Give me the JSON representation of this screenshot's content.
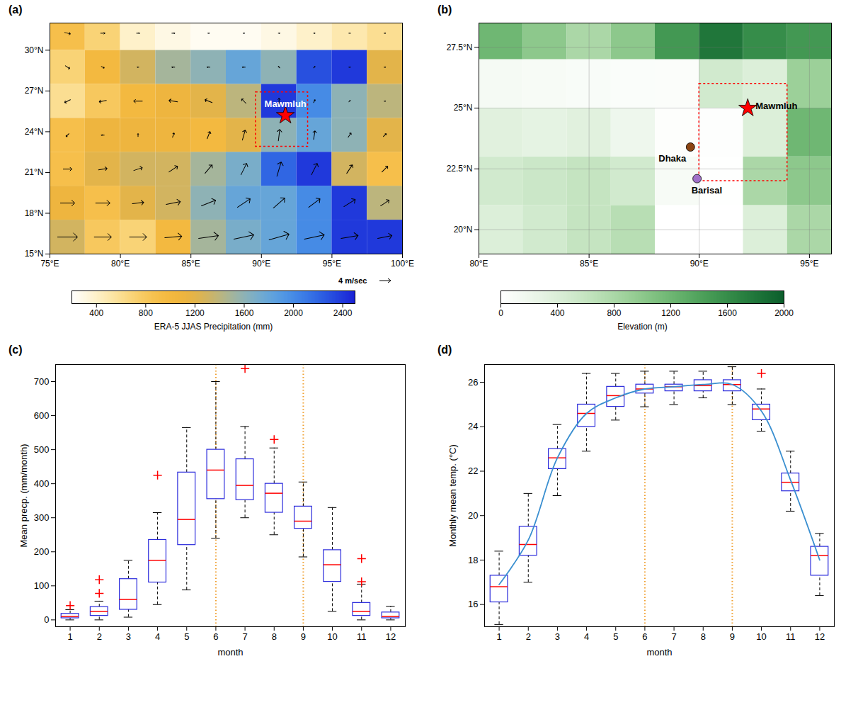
{
  "chart_data": [
    {
      "type": "map",
      "title": "(a)",
      "lon_edges": [
        75,
        77.5,
        80,
        82.5,
        85,
        87.5,
        90,
        92.5,
        95,
        97.5,
        100
      ],
      "lat_edges": [
        15,
        17.5,
        20,
        22.5,
        25,
        27.5,
        30,
        32.5
      ],
      "values": [
        [
          1300,
          800,
          700,
          1000,
          1500,
          1700,
          1800,
          2000,
          2400,
          2400
        ],
        [
          1100,
          900,
          1200,
          1300,
          1600,
          1800,
          1800,
          2000,
          2400,
          1400
        ],
        [
          900,
          1200,
          1300,
          1300,
          1500,
          1700,
          2200,
          2400,
          1300,
          900
        ],
        [
          900,
          1100,
          1100,
          1100,
          1000,
          1200,
          1600,
          1800,
          1600,
          1200
        ],
        [
          600,
          800,
          1000,
          1100,
          1200,
          1400,
          2400,
          2000,
          1600,
          1400
        ],
        [
          700,
          1000,
          1300,
          1500,
          1600,
          1800,
          1600,
          2300,
          2400,
          1200
        ],
        [
          900,
          700,
          400,
          300,
          250,
          250,
          300,
          400,
          500,
          600
        ]
      ],
      "wind": [
        [
          [
            7,
            0
          ],
          [
            6,
            0
          ],
          [
            6,
            0
          ],
          [
            6,
            0.5
          ],
          [
            7,
            1
          ],
          [
            7,
            1.5
          ],
          [
            7,
            2
          ],
          [
            7,
            1.5
          ],
          [
            6,
            1
          ],
          [
            5,
            1
          ]
        ],
        [
          [
            5,
            0
          ],
          [
            5,
            0
          ],
          [
            4,
            0.5
          ],
          [
            5,
            1
          ],
          [
            5,
            2
          ],
          [
            4.5,
            3
          ],
          [
            4,
            3.5
          ],
          [
            4,
            3
          ],
          [
            4,
            2.5
          ],
          [
            3,
            2
          ]
        ],
        [
          [
            3,
            0
          ],
          [
            3,
            0.5
          ],
          [
            3,
            1
          ],
          [
            3,
            2
          ],
          [
            2.5,
            3
          ],
          [
            2,
            4
          ],
          [
            1.5,
            5
          ],
          [
            2,
            4
          ],
          [
            2,
            3
          ],
          [
            2,
            2
          ]
        ],
        [
          [
            -1,
            -1
          ],
          [
            -1,
            0
          ],
          [
            0,
            1
          ],
          [
            0.5,
            1.5
          ],
          [
            1,
            2.5
          ],
          [
            1,
            3.5
          ],
          [
            0.5,
            4
          ],
          [
            0.5,
            3
          ],
          [
            1,
            1.5
          ],
          [
            1,
            1
          ]
        ],
        [
          [
            -2,
            -1
          ],
          [
            -2.5,
            -0.5
          ],
          [
            -3,
            0
          ],
          [
            -3,
            0.5
          ],
          [
            -2.5,
            1
          ],
          [
            -1.5,
            1.5
          ],
          [
            0,
            2
          ],
          [
            0.5,
            1
          ],
          [
            0.5,
            0.5
          ],
          [
            0.5,
            0
          ]
        ],
        [
          [
            1.5,
            -1
          ],
          [
            1,
            -0.5
          ],
          [
            -0.5,
            0
          ],
          [
            -1,
            0
          ],
          [
            -1,
            0
          ],
          [
            -1,
            0
          ],
          [
            -0.5,
            0.5
          ],
          [
            0.5,
            0.5
          ],
          [
            0.5,
            0
          ],
          [
            0.5,
            0
          ]
        ],
        [
          [
            2,
            -0.5
          ],
          [
            1.5,
            0
          ],
          [
            1,
            0
          ],
          [
            1,
            0
          ],
          [
            0.5,
            0
          ],
          [
            0.5,
            0
          ],
          [
            0.5,
            0
          ],
          [
            0.5,
            0
          ],
          [
            0.5,
            0
          ],
          [
            0.5,
            0
          ]
        ]
      ],
      "wind_key": {
        "value": 4,
        "label": "4 m/sec"
      },
      "colorbar": {
        "label": "ERA-5 JJAS Precipitation (mm)",
        "range": [
          200,
          2500
        ],
        "ticks": [
          400,
          800,
          1200,
          1600,
          2000,
          2400
        ],
        "colors": [
          "#ffffff",
          "#fde9a8",
          "#f6be45",
          "#f2b030",
          "#9fb9a8",
          "#5aa7e8",
          "#2f6fe6",
          "#1a22d6"
        ]
      },
      "xlim": [
        75,
        100
      ],
      "xticks": [
        {
          "value": 75,
          "label": "75°E"
        },
        {
          "value": 80,
          "label": "80°E"
        },
        {
          "value": 85,
          "label": "85°E"
        },
        {
          "value": 90,
          "label": "90°E"
        },
        {
          "value": 95,
          "label": "95°E"
        },
        {
          "value": 100,
          "label": "100°E"
        }
      ],
      "ylim": [
        15,
        32
      ],
      "yticks": [
        {
          "value": 15,
          "label": "15°N"
        },
        {
          "value": 18,
          "label": "18°N"
        },
        {
          "value": 21,
          "label": "21°N"
        },
        {
          "value": 24,
          "label": "24°N"
        },
        {
          "value": 27,
          "label": "27°N"
        },
        {
          "value": 30,
          "label": "30°N"
        }
      ],
      "box": {
        "lon": [
          89.6,
          93.3
        ],
        "lat": [
          22.9,
          26.9
        ],
        "color": "red"
      },
      "sites": [
        {
          "name": "Mawmluh",
          "lon": 91.7,
          "lat": 25.2,
          "color": "red",
          "marker": "star"
        }
      ]
    },
    {
      "type": "map",
      "title": "(b)",
      "grid": true,
      "lon_edges": [
        80,
        82,
        84,
        86,
        88,
        90,
        92,
        94,
        96
      ],
      "lat_edges": [
        19,
        21,
        23,
        25,
        27,
        28.5
      ],
      "values": [
        [
          400,
          500,
          600,
          700,
          0,
          0,
          400,
          800
        ],
        [
          500,
          550,
          600,
          500,
          100,
          10,
          800,
          1000
        ],
        [
          350,
          300,
          350,
          200,
          30,
          20,
          400,
          1200
        ],
        [
          120,
          100,
          80,
          60,
          50,
          500,
          400,
          900
        ],
        [
          1200,
          1000,
          800,
          1000,
          1500,
          1800,
          1600,
          1500
        ]
      ],
      "colorbar": {
        "label": "Elevation (m)",
        "range": [
          0,
          2000
        ],
        "ticks": [
          0,
          400,
          800,
          1200,
          1600,
          2000
        ],
        "colors": [
          "#ffffff",
          "#d6ecd2",
          "#8fcb8a",
          "#3e9a4f",
          "#0b5e2c"
        ]
      },
      "xlim": [
        80,
        96
      ],
      "xticks": [
        {
          "value": 80,
          "label": "80°E"
        },
        {
          "value": 85,
          "label": "85°E"
        },
        {
          "value": 90,
          "label": "90°E"
        },
        {
          "value": 95,
          "label": "95°E"
        }
      ],
      "ylim": [
        19,
        28.5
      ],
      "yticks": [
        {
          "value": 20,
          "label": "20°N"
        },
        {
          "value": 22.5,
          "label": "22.5°N"
        },
        {
          "value": 25,
          "label": "25°N"
        },
        {
          "value": 27.5,
          "label": "27.5°N"
        }
      ],
      "box": {
        "lon": [
          90,
          94
        ],
        "lat": [
          22,
          26
        ],
        "color": "red"
      },
      "sites": [
        {
          "name": "Mawmluh",
          "lon": 92.2,
          "lat": 25.0,
          "color": "red",
          "marker": "star"
        },
        {
          "name": "Dhaka",
          "lon": 89.6,
          "lat": 23.4,
          "color": "#8b4513",
          "marker": "circle"
        },
        {
          "name": "Barisal",
          "lon": 89.9,
          "lat": 22.1,
          "color": "#a070c8",
          "marker": "circle"
        }
      ]
    },
    {
      "type": "box",
      "title": "(c)",
      "xlabel": "month",
      "ylabel": "Mean precp. (mm/month)",
      "color": "#2b2bdc",
      "x": [
        1,
        2,
        3,
        4,
        5,
        6,
        7,
        8,
        9,
        10,
        11,
        12
      ],
      "whisker_low": [
        0,
        0,
        8,
        45,
        88,
        240,
        300,
        250,
        185,
        25,
        0,
        0
      ],
      "q1": [
        5,
        12,
        30,
        110,
        220,
        355,
        352,
        315,
        268,
        112,
        12,
        5
      ],
      "median": [
        10,
        25,
        60,
        175,
        295,
        440,
        395,
        372,
        290,
        162,
        25,
        10
      ],
      "q3": [
        18,
        38,
        120,
        235,
        433,
        500,
        472,
        400,
        333,
        205,
        50,
        22
      ],
      "whisker_high": [
        30,
        55,
        175,
        315,
        565,
        700,
        568,
        505,
        405,
        330,
        105,
        40
      ],
      "outliers": [
        [
          42
        ],
        [
          78,
          118
        ],
        [],
        [
          425
        ],
        [],
        [],
        [
          738
        ],
        [
          530
        ],
        [],
        [],
        [
          112,
          180
        ],
        []
      ],
      "vlines": [
        6,
        9
      ],
      "xlim": [
        0.5,
        12.5
      ],
      "xticks": [
        1,
        2,
        3,
        4,
        5,
        6,
        7,
        8,
        9,
        10,
        11,
        12
      ],
      "ylim": [
        -20,
        750
      ],
      "yticks": [
        0,
        100,
        200,
        300,
        400,
        500,
        600,
        700
      ]
    },
    {
      "type": "box",
      "title": "(d)",
      "xlabel": "month",
      "ylabel": "Monthly mean temp. (°C)",
      "color": "#2b2bdc",
      "x": [
        1,
        2,
        3,
        4,
        5,
        6,
        7,
        8,
        9,
        10,
        11,
        12
      ],
      "whisker_low": [
        15.1,
        17.0,
        20.9,
        22.9,
        24.3,
        24.9,
        25.0,
        25.3,
        25.0,
        23.8,
        20.2,
        16.4
      ],
      "q1": [
        16.1,
        18.2,
        22.1,
        24.0,
        24.9,
        25.5,
        25.6,
        25.6,
        25.6,
        24.3,
        21.1,
        17.3
      ],
      "median": [
        16.8,
        18.7,
        22.6,
        24.6,
        25.4,
        25.7,
        25.8,
        25.85,
        25.9,
        24.8,
        21.5,
        18.2
      ],
      "q3": [
        17.3,
        19.5,
        23.0,
        25.0,
        25.8,
        25.9,
        25.9,
        26.1,
        26.1,
        25.0,
        21.9,
        18.6
      ],
      "whisker_high": [
        18.4,
        21.0,
        24.1,
        26.4,
        26.4,
        26.5,
        26.5,
        26.5,
        26.7,
        25.7,
        22.9,
        19.2
      ],
      "outliers": [
        [],
        [],
        [],
        [],
        [],
        [],
        [],
        [],
        [],
        [
          26.4
        ],
        [],
        []
      ],
      "mean_values": {
        "values": [
          16.9,
          18.9,
          22.6,
          24.6,
          25.3,
          25.7,
          25.8,
          25.9,
          25.9,
          24.7,
          21.6,
          18.0
        ],
        "color": "#3a8fd0"
      },
      "vlines": [
        6,
        9
      ],
      "xlim": [
        0.5,
        12.5
      ],
      "xticks": [
        1,
        2,
        3,
        4,
        5,
        6,
        7,
        8,
        9,
        10,
        11,
        12
      ],
      "ylim": [
        15,
        26.8
      ],
      "yticks": [
        16,
        18,
        20,
        22,
        24,
        26
      ]
    }
  ]
}
